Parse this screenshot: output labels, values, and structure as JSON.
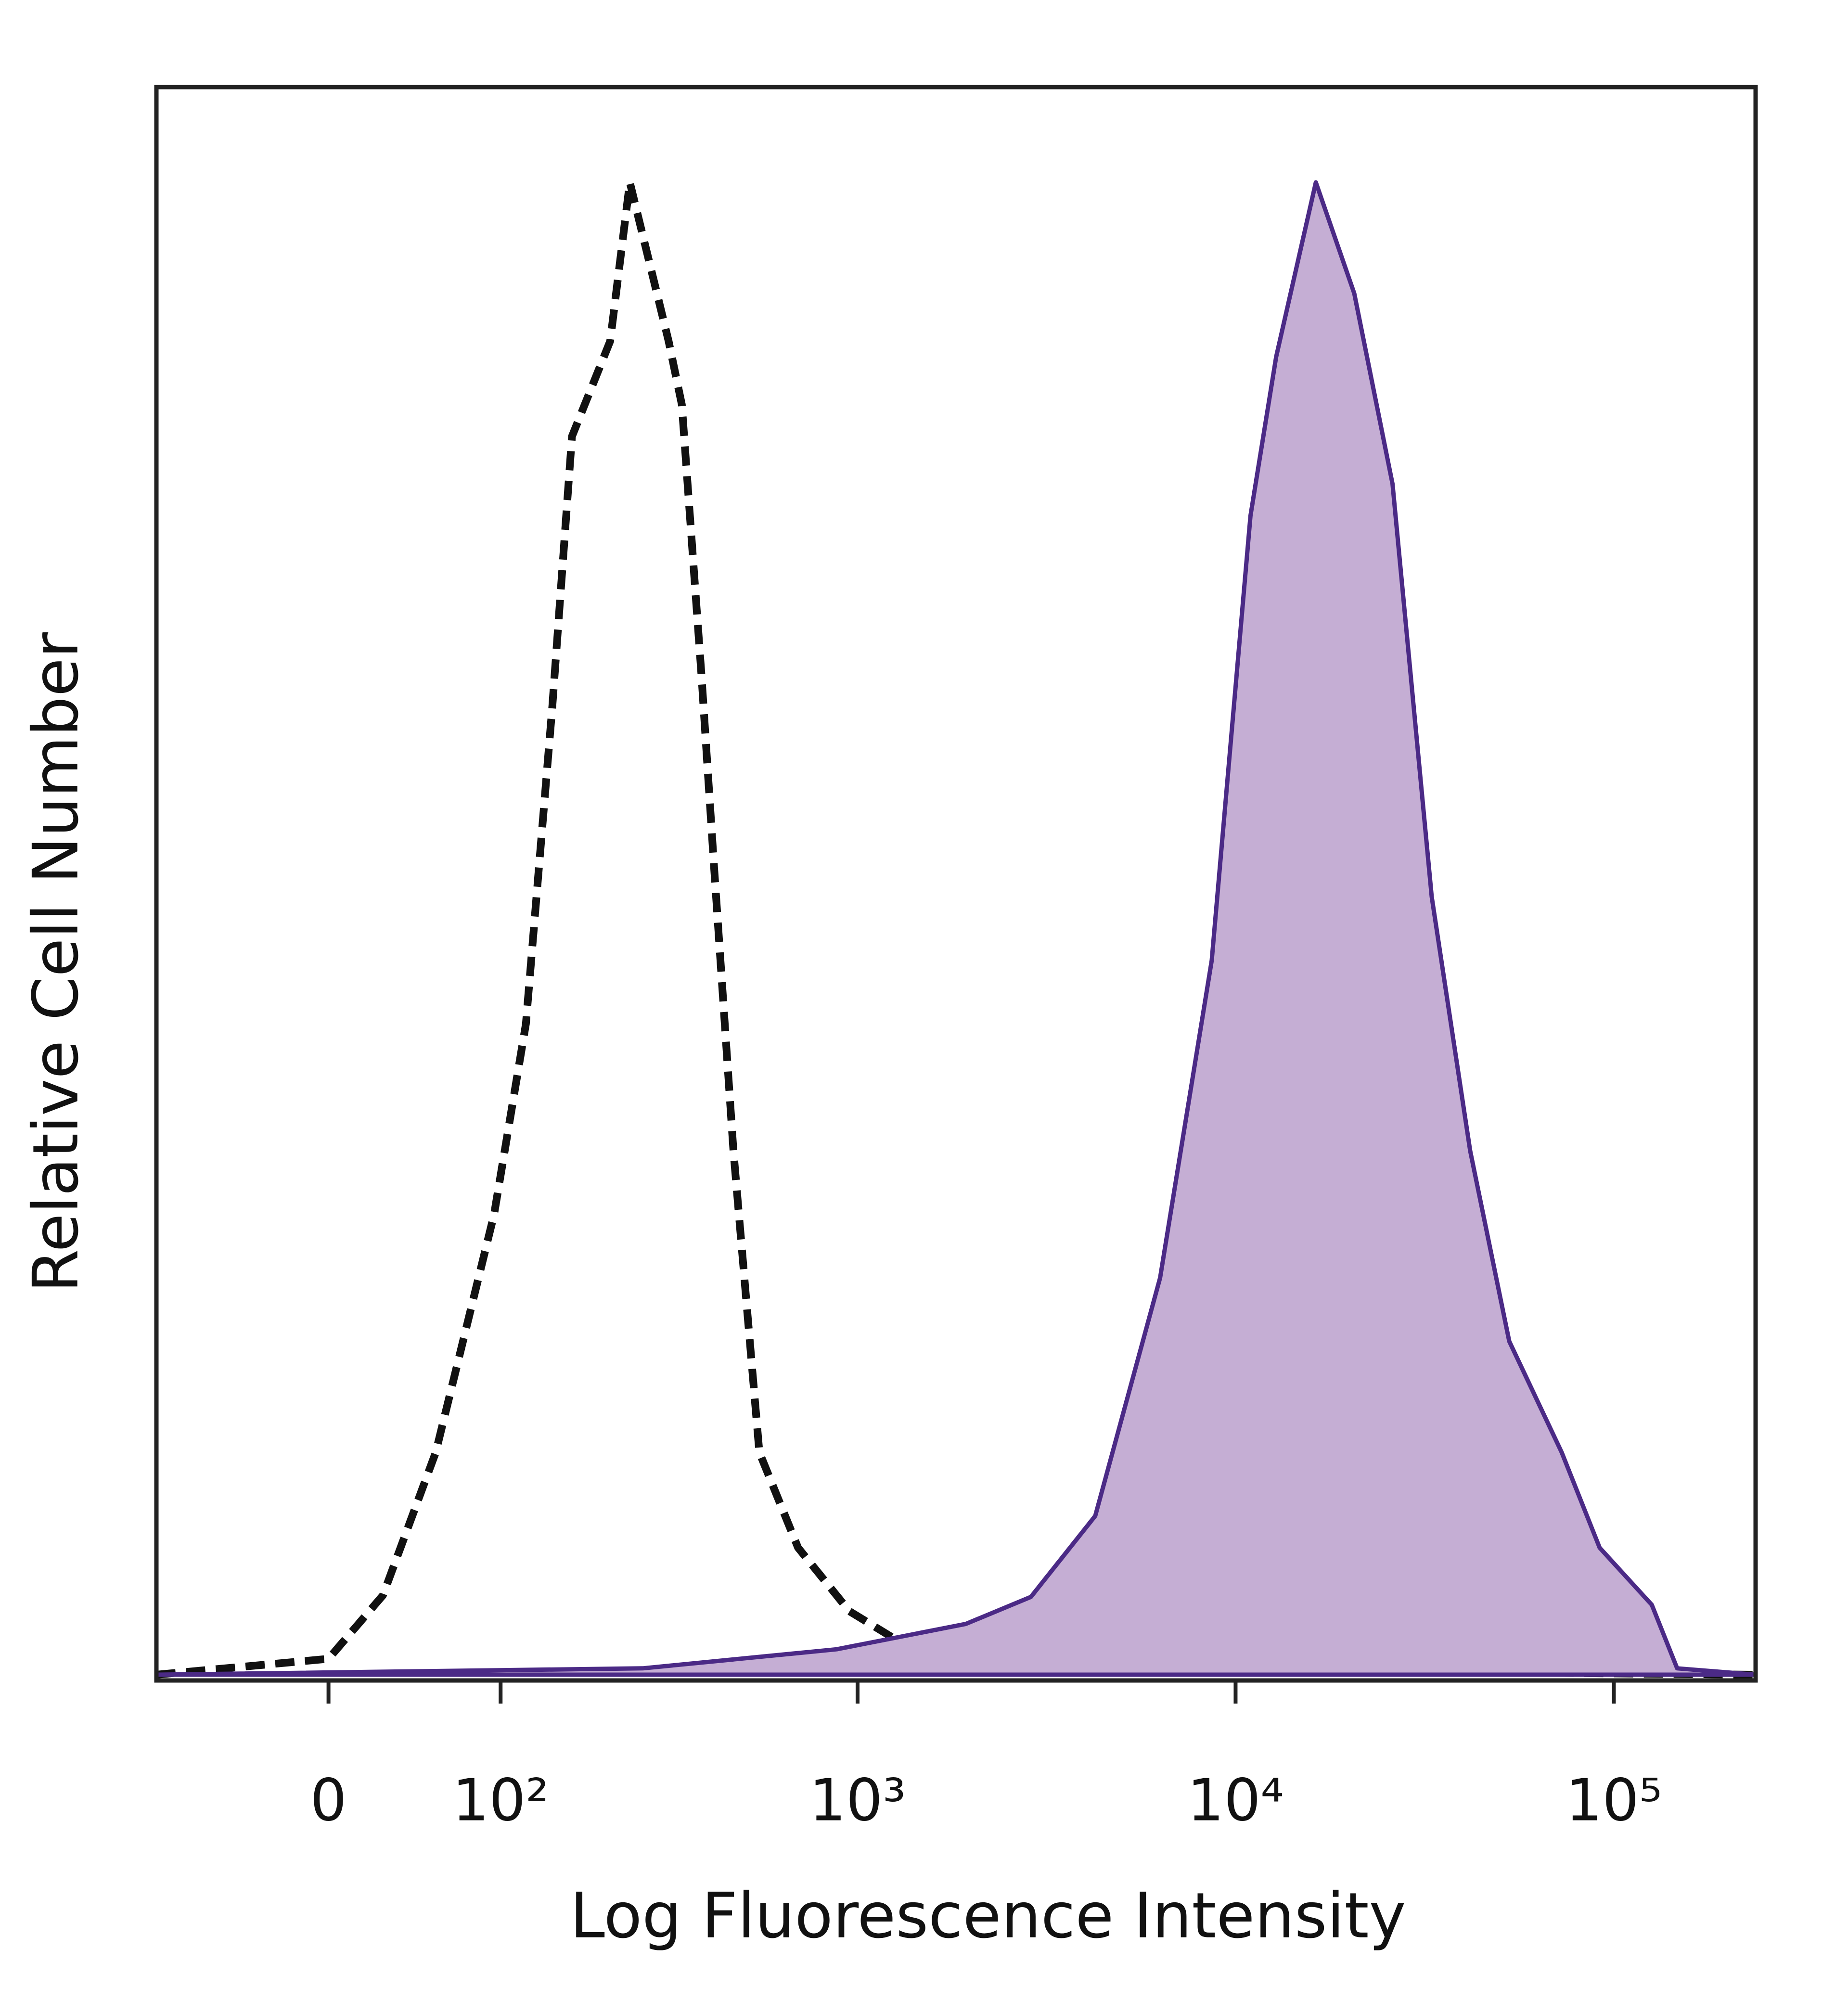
{
  "chart_data": {
    "type": "histogram-overlay",
    "xlabel": "Log Fluorescence Intensity",
    "ylabel": "Relative Cell Number",
    "xscale": "asinh",
    "xlim": [
      -100,
      237000
    ],
    "ylim": [
      0,
      100
    ],
    "xticks": [
      0,
      {
        "value": 100,
        "label": "10²"
      },
      {
        "value": 1000,
        "label": "10³"
      },
      {
        "value": 10000,
        "label": "10⁴"
      },
      {
        "value": 100000,
        "label": "10⁵"
      }
    ],
    "series": [
      {
        "style": "dashed",
        "color": "#111111",
        "x": [
          -100,
          0,
          27,
          56,
          95,
          121,
          146,
          167,
          215,
          244,
          312,
          339,
          383,
          414,
          467,
          548,
          695,
          951,
          1306,
          2877,
          237000
        ],
        "values": [
          0,
          1,
          5,
          14,
          29,
          41,
          61,
          78,
          84,
          94,
          84,
          80,
          63,
          51,
          33,
          14,
          8,
          4,
          2,
          0.4,
          0
        ]
      },
      {
        "style": "filled",
        "color": "#4b2a86",
        "fill": "#c5aed4",
        "x": [
          -100,
          265,
          880,
          1937,
          2877,
          4256,
          6317,
          8650,
          10950,
          12800,
          16300,
          20600,
          26000,
          33000,
          41700,
          52900,
          72800,
          91700,
          126000,
          147000,
          237000
        ],
        "values": [
          0,
          0.4,
          1.6,
          3.2,
          4.9,
          10,
          25,
          45,
          73,
          83,
          94,
          87,
          75,
          49,
          33,
          21,
          14,
          8,
          4.4,
          0.4,
          0
        ]
      }
    ]
  }
}
